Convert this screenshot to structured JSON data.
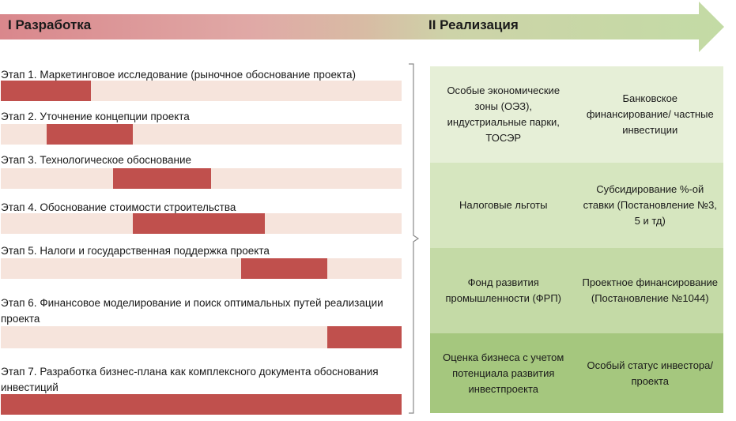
{
  "phases": {
    "development": "I Разработка",
    "implementation": "II Реализация"
  },
  "stages": [
    {
      "label": "Этап 1. Маркетинговое исследование (рыночное обоснование проекта)",
      "start": 0.0,
      "end": 0.225
    },
    {
      "label": "Этап 2. Уточнение концепции проекта",
      "start": 0.115,
      "end": 0.33
    },
    {
      "label": "Этап 3. Технологическое обоснование",
      "start": 0.28,
      "end": 0.525
    },
    {
      "label": "Этап 4. Обоснование стоимости строительства",
      "start": 0.33,
      "end": 0.658
    },
    {
      "label": "Этап 5.  Налоги и государственная поддержка проекта",
      "start": 0.6,
      "end": 0.815
    },
    {
      "label": "Этап 6. Финансовое моделирование и поиск оптимальных путей реализации проекта",
      "start": 0.815,
      "end": 1.0
    },
    {
      "label": "Этап 7. Разработка бизнес-плана как комплексного документа обоснования инвестиций",
      "start": 0.0,
      "end": 1.0
    }
  ],
  "instruments": [
    {
      "left": "Особые экономические зоны (ОЭЗ), индустриальные парки, ТОСЭР",
      "right": "Банковское финансирование/ частные инвестиции",
      "color": "#e6efd7"
    },
    {
      "left": "Налоговые льготы",
      "right": "Субсидирование %-ой ставки (Постановление №3, 5 и тд)",
      "color": "#d6e6bf"
    },
    {
      "left": "Фонд развития промышленности (ФРП)",
      "right": "Проектное финансирование (Постановление №1044)",
      "color": "#c4daa6"
    },
    {
      "left": "Оценка бизнеса с учетом потенциала развития инвестпроекта",
      "right": "Особый статус инвестора/ проекта",
      "color": "#a5c77e"
    }
  ],
  "colors": {
    "bar": "#c0504d",
    "track": "#f6e4dc",
    "arrow_start": "#d9878c",
    "arrow_end": "#c3dba5"
  }
}
